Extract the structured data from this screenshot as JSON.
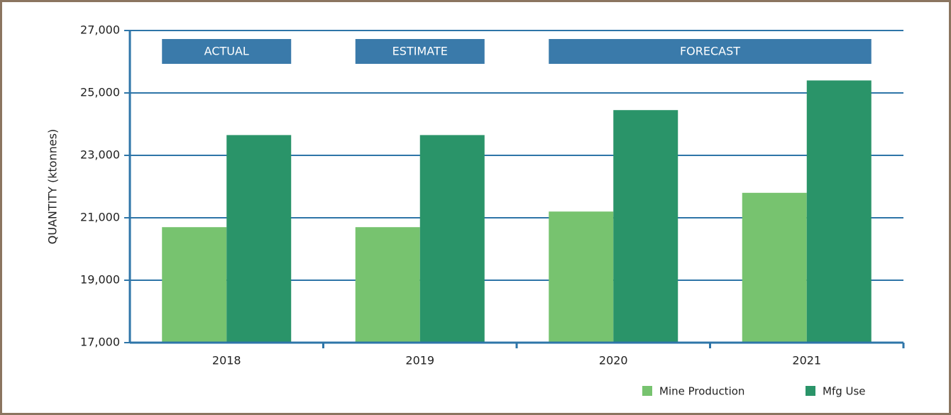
{
  "chart_data": {
    "type": "bar",
    "ylabel": "QUANTITY (ktonnes)",
    "categories": [
      "2018",
      "2019",
      "2020",
      "2021"
    ],
    "series": [
      {
        "name": "Mine Production",
        "color": "#77c36f",
        "values": [
          20700,
          20700,
          21200,
          21800
        ]
      },
      {
        "name": "Mfg Use",
        "color": "#2a9469",
        "values": [
          23650,
          23650,
          24450,
          25400
        ]
      }
    ],
    "annotations": [
      "ACTUAL",
      "ESTIMATE",
      "FORECAST"
    ],
    "ylim": [
      17000,
      27000
    ],
    "yticks": [
      {
        "value": 17000,
        "label": "17,000"
      },
      {
        "value": 19000,
        "label": "19,000"
      },
      {
        "value": 21000,
        "label": "21,000"
      },
      {
        "value": 23000,
        "label": "23,000"
      },
      {
        "value": 25000,
        "label": "25,000"
      },
      {
        "value": 27000,
        "label": "27,000"
      }
    ],
    "grid": true,
    "legend": "bottom-right"
  }
}
